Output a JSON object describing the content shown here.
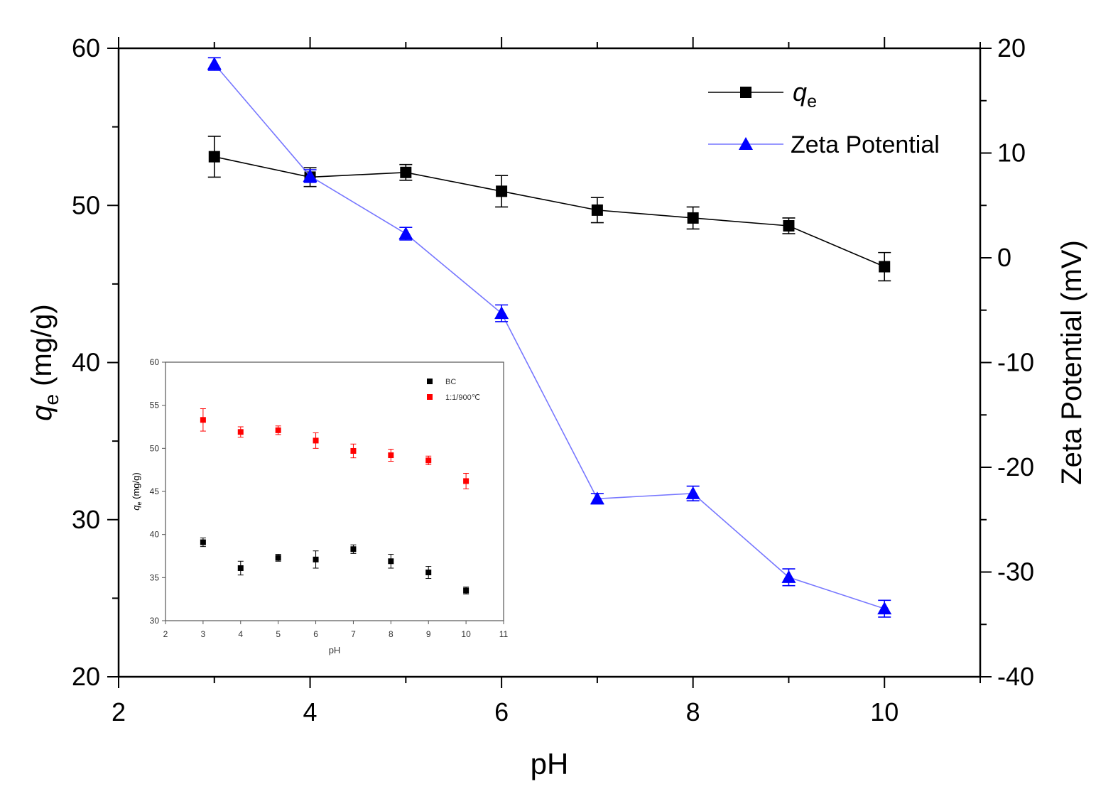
{
  "chart_data": [
    {
      "type": "line",
      "title": "",
      "xlabel": "pH",
      "ylabel_main": "q",
      "ylabel_sub": "e",
      "ylabel_unit": " (mg/g)",
      "y2label": "Zeta Potential (mV)",
      "xlim": [
        2,
        11
      ],
      "ylim": [
        20,
        60
      ],
      "y2lim": [
        -40,
        20
      ],
      "x_ticks": [
        2,
        4,
        6,
        8,
        10
      ],
      "y_ticks": [
        20,
        30,
        40,
        50,
        60
      ],
      "y2_ticks": [
        -40,
        -30,
        -20,
        -10,
        0,
        10,
        20
      ],
      "legend_position": "top-right",
      "series": [
        {
          "name": "qe",
          "legend_main": "q",
          "legend_sub": "e",
          "axis": "left",
          "color": "#000000",
          "marker": "square",
          "x": [
            3,
            4,
            5,
            6,
            7,
            8,
            9,
            10
          ],
          "values": [
            53.1,
            51.8,
            52.1,
            50.9,
            49.7,
            49.2,
            48.7,
            46.1
          ],
          "errors": [
            1.3,
            0.6,
            0.5,
            1.0,
            0.8,
            0.7,
            0.5,
            0.9
          ]
        },
        {
          "name": "Zeta Potential",
          "axis": "right",
          "color": "#0000ff",
          "line_color": "#7777ff",
          "marker": "triangle",
          "x": [
            3,
            4,
            5,
            6,
            7,
            8,
            9,
            10
          ],
          "values": [
            18.5,
            7.8,
            2.3,
            -5.3,
            -23.0,
            -22.5,
            -30.5,
            -33.5
          ],
          "errors": [
            0.6,
            0.6,
            0.6,
            0.8,
            0.5,
            0.7,
            0.8,
            0.8
          ]
        }
      ]
    },
    {
      "type": "scatter",
      "title": "",
      "xlabel": "pH",
      "ylabel_main": "q",
      "ylabel_sub": "e",
      "ylabel_unit": " (mg/g)",
      "xlim": [
        2,
        11
      ],
      "ylim": [
        30,
        60
      ],
      "x_ticks": [
        2,
        3,
        4,
        5,
        6,
        7,
        8,
        9,
        10,
        11
      ],
      "y_ticks": [
        30,
        35,
        40,
        45,
        50,
        55,
        60
      ],
      "legend_position": "top-right",
      "series": [
        {
          "name": "BC",
          "color": "#000000",
          "x": [
            3,
            4,
            5,
            6,
            7,
            8,
            9,
            10
          ],
          "values": [
            39.1,
            36.1,
            37.3,
            37.1,
            38.3,
            36.9,
            35.6,
            33.5
          ],
          "errors": [
            0.5,
            0.8,
            0.4,
            1.0,
            0.5,
            0.8,
            0.7,
            0.4
          ]
        },
        {
          "name": "1:1/900℃",
          "color": "#ff0000",
          "x": [
            3,
            4,
            5,
            6,
            7,
            8,
            9,
            10
          ],
          "values": [
            53.3,
            51.9,
            52.1,
            50.9,
            49.7,
            49.2,
            48.6,
            46.2
          ],
          "errors": [
            1.3,
            0.6,
            0.5,
            0.9,
            0.8,
            0.7,
            0.5,
            0.9
          ]
        }
      ]
    }
  ]
}
